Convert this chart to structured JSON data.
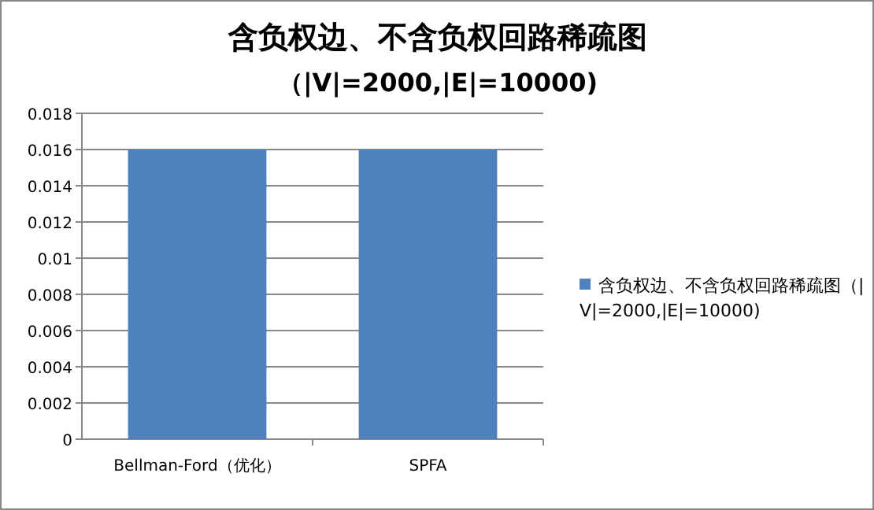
{
  "chart_data": {
    "type": "bar",
    "title": "含负权边、不含负权回路稀疏图",
    "subtitle": "（|V|=2000,|E|=10000)",
    "categories": [
      "Bellman-Ford（优化）",
      "SPFA"
    ],
    "series": [
      {
        "name": "含负权边、不含负权回路稀疏图（|V|=2000,|E|=10000)",
        "color": "#4f81bd",
        "values": [
          0.016,
          0.016
        ]
      }
    ],
    "ylim": [
      0,
      0.018
    ],
    "yticks": [
      0,
      0.002,
      0.004,
      0.006,
      0.008,
      0.01,
      0.012,
      0.014,
      0.016,
      0.018
    ],
    "grid": "y",
    "legend": "right"
  }
}
